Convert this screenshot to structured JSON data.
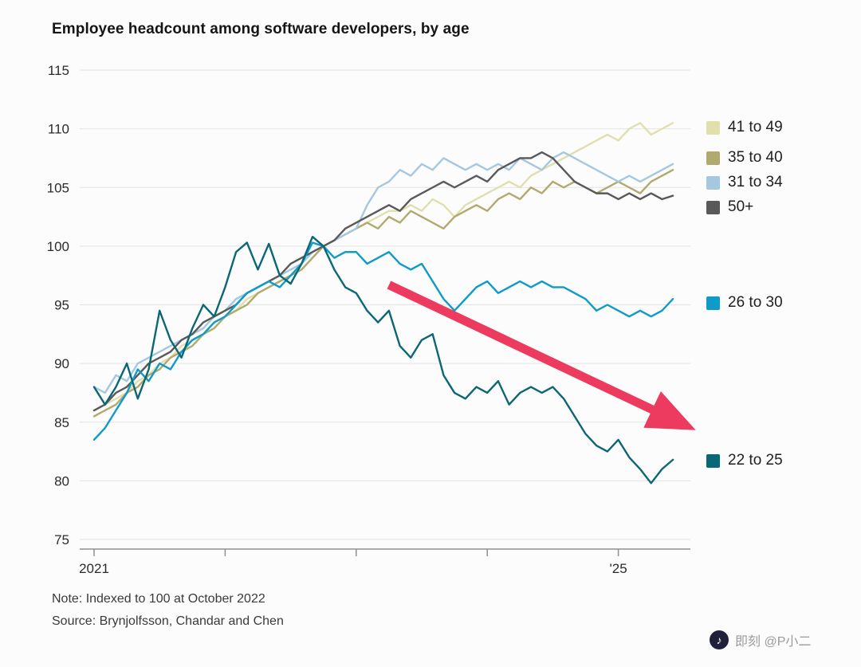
{
  "chart_data": {
    "type": "line",
    "title": "Employee headcount among software developers, by age",
    "note": "Note: Indexed to 100 at October 2022",
    "source": "Source: Brynjolfsson, Chandar and Chen",
    "x_start": "2021-01",
    "x_frequency": "monthly",
    "x_tick_labels": [
      "2021",
      "",
      "",
      "",
      "'25"
    ],
    "ylim": [
      75,
      115
    ],
    "y_ticks": [
      75,
      80,
      85,
      90,
      95,
      100,
      105,
      110,
      115
    ],
    "grid": true,
    "legend_position": "right",
    "series": [
      {
        "name": "41 to 49",
        "color": "#e0e0ae",
        "values": [
          86,
          86.5,
          87,
          87.5,
          88.5,
          89,
          90,
          90.5,
          91.5,
          92,
          92.5,
          93.5,
          94,
          94.5,
          95.5,
          96,
          96.5,
          97,
          97.5,
          98,
          99,
          100,
          100.5,
          101,
          101.5,
          102,
          102.5,
          103,
          103,
          103.5,
          103,
          104,
          103.5,
          102.5,
          103.5,
          104,
          104.5,
          105,
          105.5,
          105,
          106,
          106.5,
          107,
          107.5,
          108,
          108.5,
          109,
          109.5,
          109,
          110,
          110.5,
          109.5,
          110,
          110.5
        ]
      },
      {
        "name": "35 to 40",
        "color": "#b0aa6e",
        "values": [
          85.5,
          86,
          86.5,
          87.5,
          88,
          89,
          89.5,
          90.5,
          91,
          91.5,
          92.5,
          93,
          94,
          94.5,
          95,
          96,
          96.5,
          97,
          97.5,
          98,
          99,
          100,
          100.5,
          101,
          101.5,
          102,
          101.5,
          102.5,
          102,
          103,
          102.5,
          102,
          101.5,
          102.5,
          103,
          103.5,
          103,
          104,
          104.5,
          104,
          105,
          104.5,
          105.5,
          105,
          105.5,
          105,
          104.5,
          105,
          105.5,
          105,
          104.5,
          105.5,
          106,
          106.5
        ]
      },
      {
        "name": "31 to 34",
        "color": "#a5c8e1",
        "values": [
          88,
          87.5,
          89,
          88.5,
          90,
          90.5,
          91,
          91.5,
          92,
          92.5,
          93,
          94,
          94.5,
          95.5,
          96,
          96.5,
          97,
          97.5,
          98,
          98.5,
          99.5,
          100,
          100.5,
          101,
          101.5,
          103.5,
          105,
          105.5,
          106.5,
          106,
          107,
          106.5,
          107.5,
          107,
          106.5,
          107,
          106.5,
          107,
          106.5,
          107.5,
          107,
          106.5,
          107.5,
          108,
          107.5,
          107,
          106.5,
          106,
          105.5,
          106,
          105.5,
          106,
          106.5,
          107
        ]
      },
      {
        "name": "50+",
        "color": "#595959",
        "values": [
          86,
          86.5,
          87.5,
          88,
          89,
          90,
          90.5,
          91,
          92,
          92.5,
          93.5,
          94,
          94.5,
          95,
          96,
          96.5,
          97,
          97.5,
          98.5,
          99,
          99.5,
          100,
          100.5,
          101.5,
          102,
          102.5,
          103,
          103.5,
          103,
          104,
          104.5,
          105,
          105.5,
          105,
          105.5,
          106,
          105.5,
          106.5,
          107,
          107.5,
          107.5,
          108,
          107.5,
          106.5,
          105.5,
          105,
          104.5,
          104.5,
          104,
          104.5,
          104,
          104.5,
          104,
          104.3
        ]
      },
      {
        "name": "26 to 30",
        "color": "#0f9bc8",
        "values": [
          83.5,
          84.5,
          86,
          87.5,
          89.5,
          88.5,
          90,
          89.5,
          91,
          92,
          92.5,
          93.5,
          94,
          95,
          96,
          96.5,
          97,
          96.5,
          97.5,
          98.5,
          100.3,
          100,
          99,
          99.5,
          99.5,
          98.5,
          99,
          99.5,
          98.5,
          98,
          98.5,
          97,
          95.5,
          94.5,
          95.5,
          96.5,
          97,
          96,
          96.5,
          97,
          96.5,
          97,
          96.5,
          96.5,
          96,
          95.5,
          94.5,
          95,
          94.5,
          94,
          94.5,
          94,
          94.5,
          95.5
        ]
      },
      {
        "name": "22 to 25",
        "color": "#0b6675",
        "values": [
          88,
          86.5,
          88,
          90,
          87,
          89.5,
          94.5,
          92,
          90.5,
          93,
          95,
          94,
          96.5,
          99.5,
          100.3,
          98,
          100.2,
          97.5,
          96.8,
          98.5,
          100.8,
          100,
          98,
          96.5,
          96,
          94.5,
          93.5,
          94.5,
          91.5,
          90.5,
          92,
          92.5,
          89,
          87.5,
          87,
          88,
          87.5,
          88.5,
          86.5,
          87.5,
          88,
          87.5,
          88,
          87,
          85.5,
          84,
          83,
          82.5,
          83.5,
          82,
          81,
          79.8,
          81,
          81.8
        ]
      }
    ],
    "annotation_arrow": {
      "from_x": 27,
      "from_y": 96.7,
      "to_x": 54,
      "to_y": 84.8,
      "color": "#ed3a5f"
    }
  },
  "watermark": {
    "logo_glyph": "♪",
    "text": "即刻 @P小二"
  }
}
